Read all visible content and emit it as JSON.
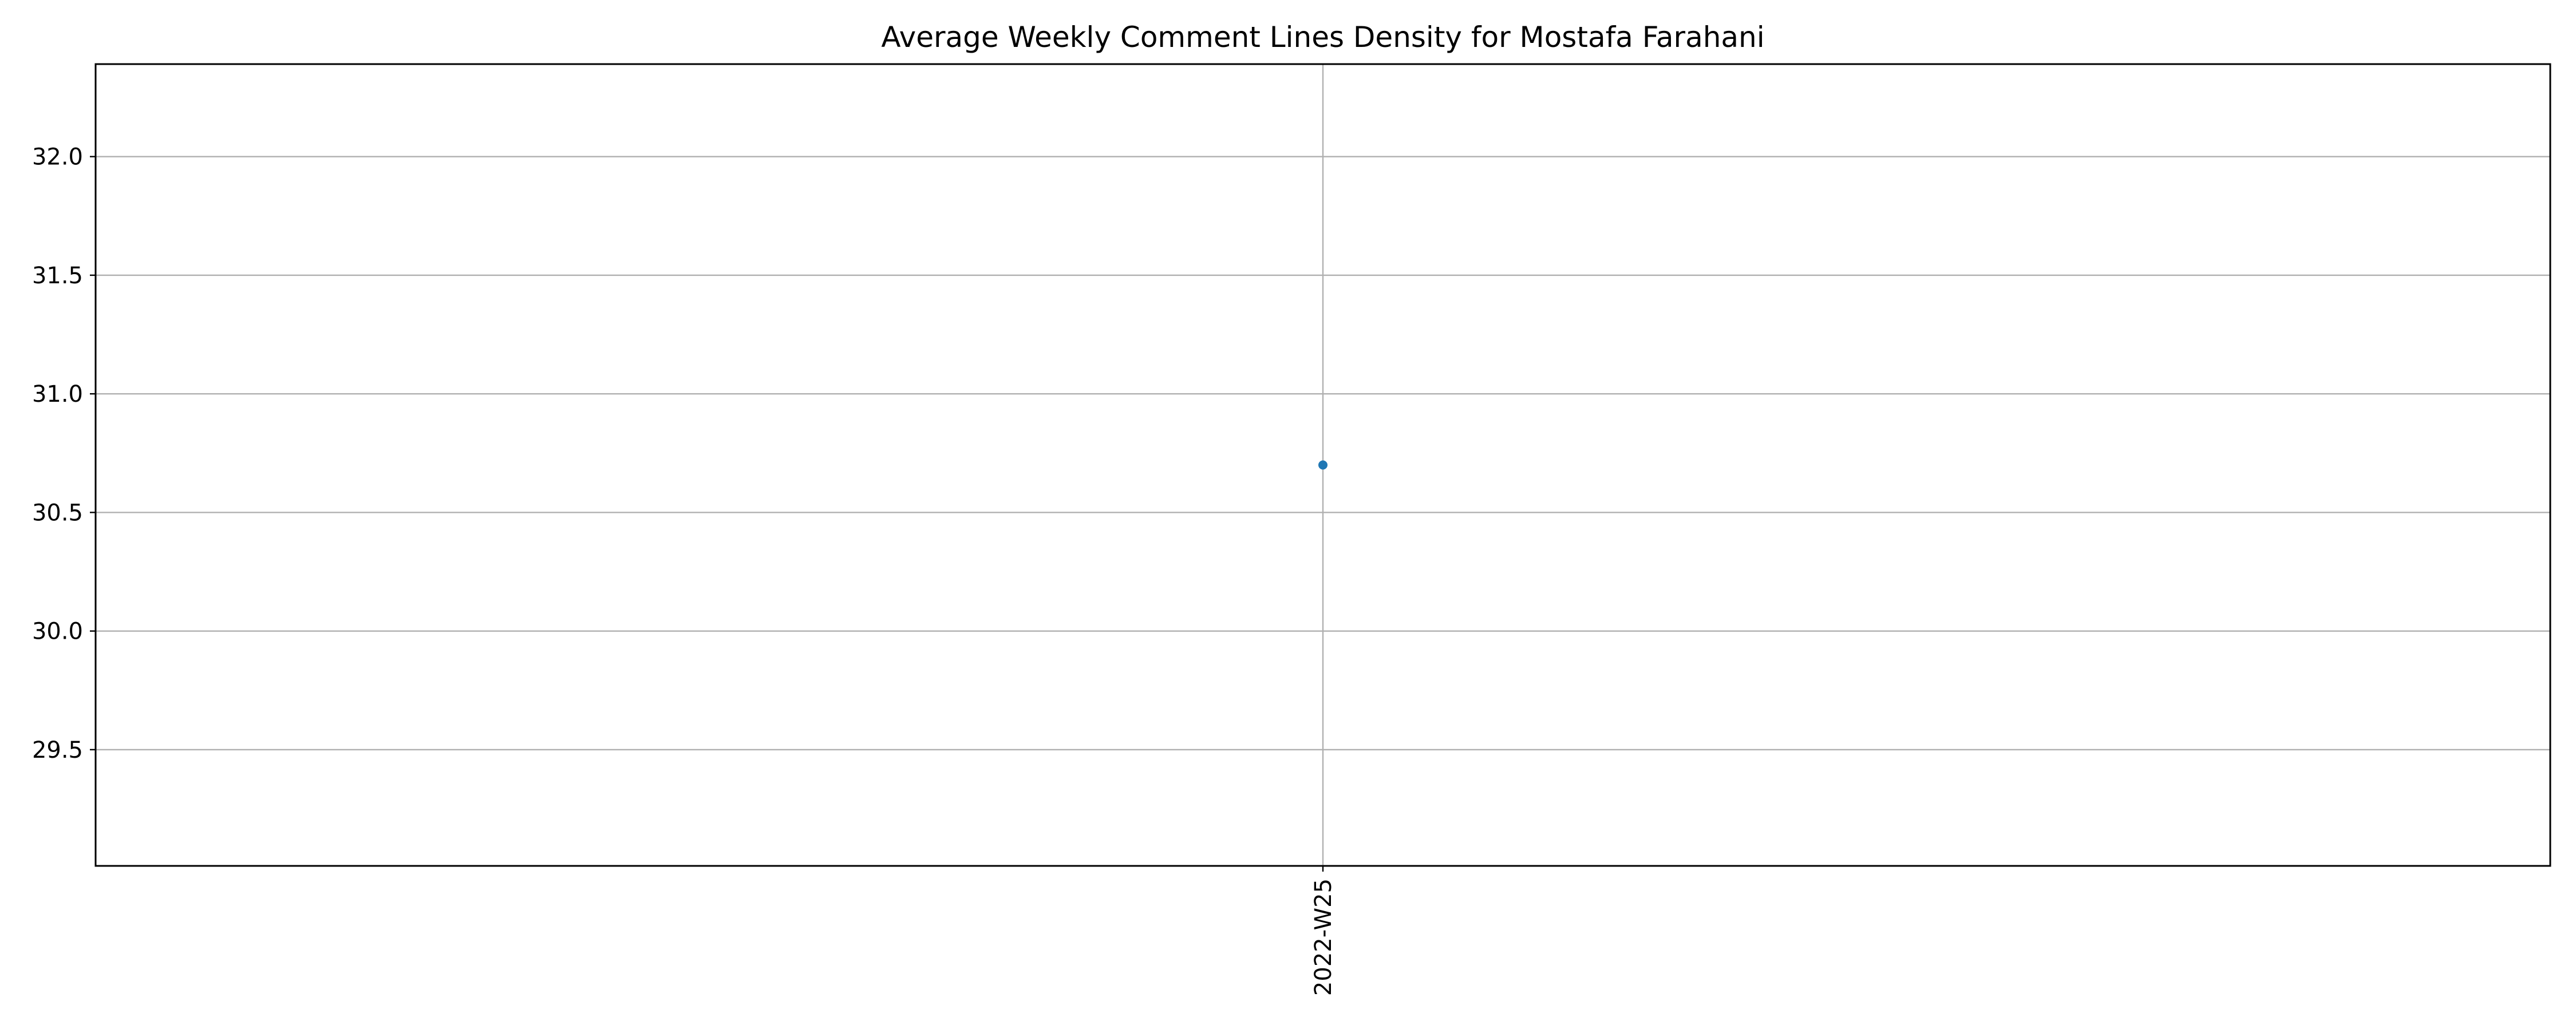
{
  "chart_data": {
    "type": "line",
    "title": "Average Weekly Comment Lines Density for Mostafa Farahani",
    "xlabel": "",
    "ylabel": "",
    "categories": [
      "2022-W25"
    ],
    "series": [
      {
        "values": [
          30.7
        ],
        "color": "#1f77b4",
        "marker": "circle"
      }
    ],
    "ylim": [
      29.01,
      32.39
    ],
    "yticks": [
      29.5,
      30.0,
      30.5,
      31.0,
      31.5,
      32.0
    ],
    "ytick_labels": [
      "29.5",
      "30.0",
      "30.5",
      "31.0",
      "31.5",
      "32.0"
    ],
    "xtick_rotation": "vertical",
    "grid": true,
    "legend": "none"
  }
}
